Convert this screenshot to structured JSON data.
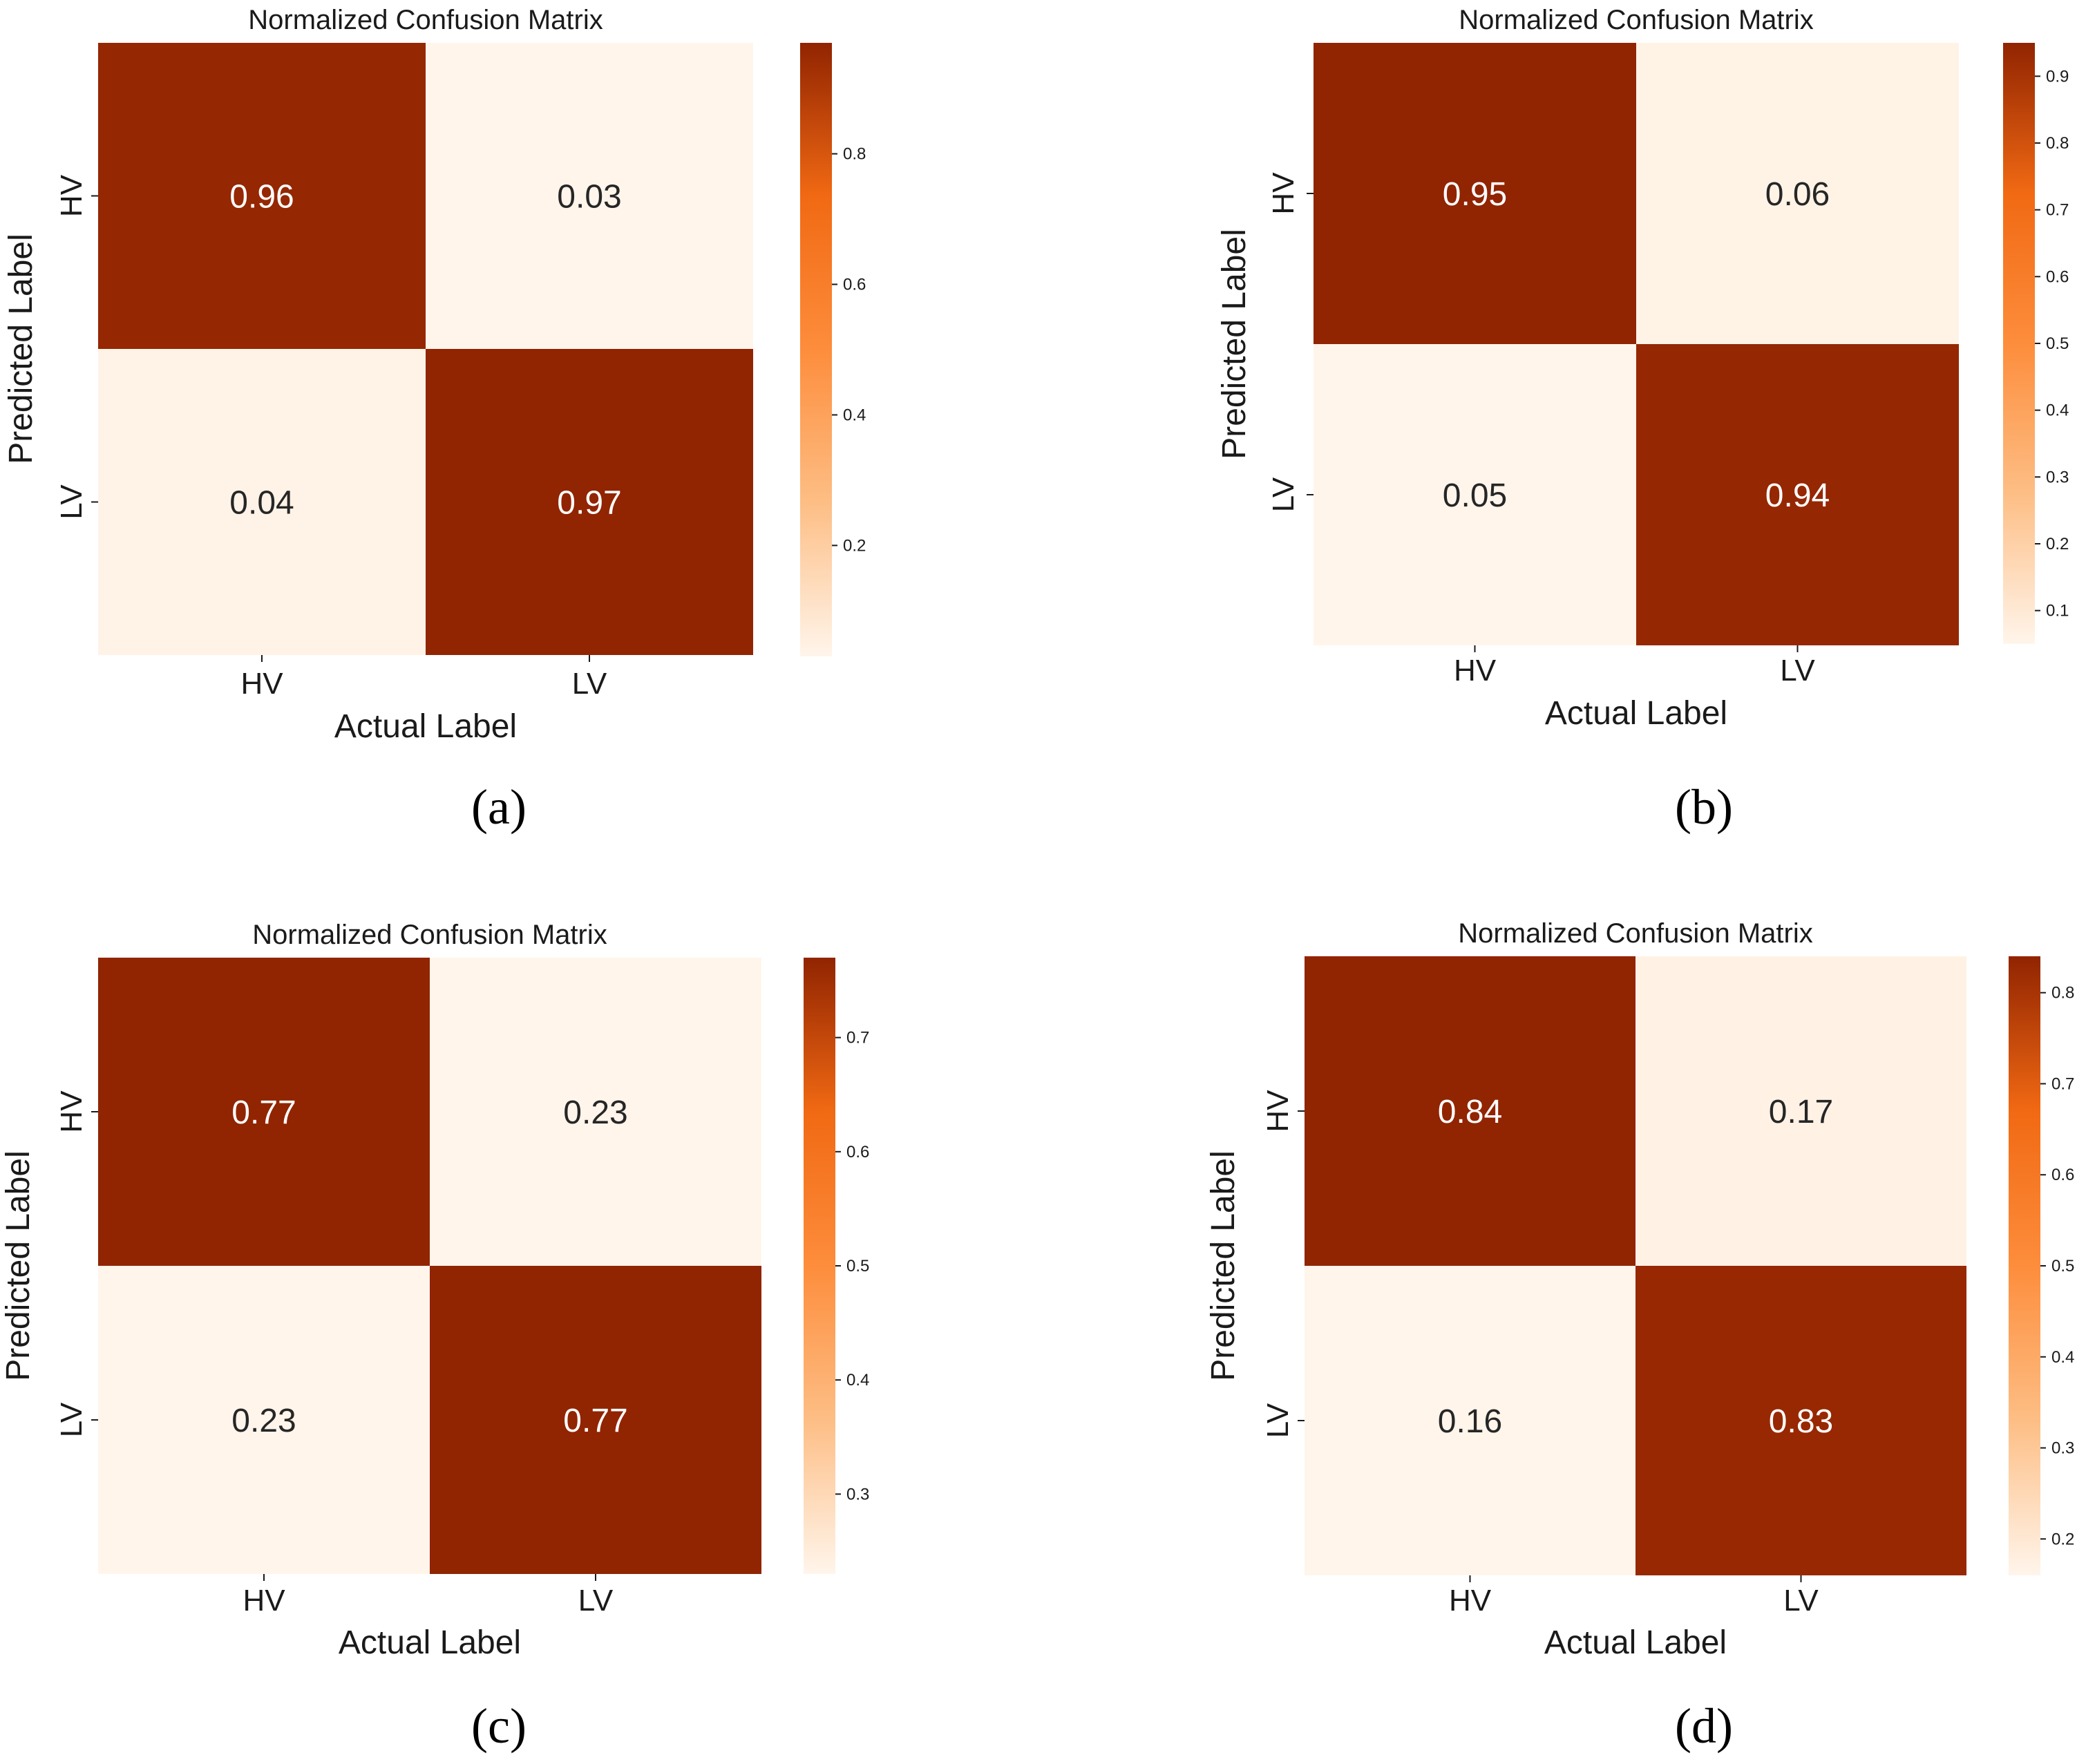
{
  "chart_data": [
    {
      "panel": "(a)",
      "type": "heatmap",
      "title": "Normalized Confusion Matrix",
      "xlabel": "Actual Label",
      "ylabel": "Predicted Label",
      "x_categories": [
        "HV",
        "LV"
      ],
      "y_categories": [
        "HV",
        "LV"
      ],
      "values": [
        [
          0.96,
          0.03
        ],
        [
          0.04,
          0.97
        ]
      ],
      "value_labels": [
        [
          "0.96",
          "0.03"
        ],
        [
          "0.04",
          "0.97"
        ]
      ],
      "colorbar": {
        "range": [
          0.03,
          0.97
        ],
        "ticks": [
          0.2,
          0.4,
          0.6,
          0.8
        ],
        "tick_labels": [
          "0.2",
          "0.4",
          "0.6",
          "0.8"
        ]
      },
      "colormap": "Oranges"
    },
    {
      "panel": "(b)",
      "type": "heatmap",
      "title": "Normalized Confusion Matrix",
      "xlabel": "Actual Label",
      "ylabel": "Predicted Label",
      "x_categories": [
        "HV",
        "LV"
      ],
      "y_categories": [
        "HV",
        "LV"
      ],
      "values": [
        [
          0.95,
          0.06
        ],
        [
          0.05,
          0.94
        ]
      ],
      "value_labels": [
        [
          "0.95",
          "0.06"
        ],
        [
          "0.05",
          "0.94"
        ]
      ],
      "colorbar": {
        "range": [
          0.05,
          0.95
        ],
        "ticks": [
          0.1,
          0.2,
          0.3,
          0.4,
          0.5,
          0.6,
          0.7,
          0.8,
          0.9
        ],
        "tick_labels": [
          "0.1",
          "0.2",
          "0.3",
          "0.4",
          "0.5",
          "0.6",
          "0.7",
          "0.8",
          "0.9"
        ]
      },
      "colormap": "Oranges"
    },
    {
      "panel": "(c)",
      "type": "heatmap",
      "title": "Normalized Confusion Matrix",
      "xlabel": "Actual Label",
      "ylabel": "Predicted Label",
      "x_categories": [
        "HV",
        "LV"
      ],
      "y_categories": [
        "HV",
        "LV"
      ],
      "values": [
        [
          0.77,
          0.23
        ],
        [
          0.23,
          0.77
        ]
      ],
      "value_labels": [
        [
          "0.77",
          "0.23"
        ],
        [
          "0.23",
          "0.77"
        ]
      ],
      "colorbar": {
        "range": [
          0.23,
          0.77
        ],
        "ticks": [
          0.3,
          0.4,
          0.5,
          0.6,
          0.7
        ],
        "tick_labels": [
          "0.3",
          "0.4",
          "0.5",
          "0.6",
          "0.7"
        ]
      },
      "colormap": "Oranges"
    },
    {
      "panel": "(d)",
      "type": "heatmap",
      "title": "Normalized Confusion Matrix",
      "xlabel": "Actual Label",
      "ylabel": "Predicted Label",
      "x_categories": [
        "HV",
        "LV"
      ],
      "y_categories": [
        "HV",
        "LV"
      ],
      "values": [
        [
          0.84,
          0.17
        ],
        [
          0.16,
          0.83
        ]
      ],
      "value_labels": [
        [
          "0.84",
          "0.17"
        ],
        [
          "0.16",
          "0.83"
        ]
      ],
      "colorbar": {
        "range": [
          0.16,
          0.84
        ],
        "ticks": [
          0.2,
          0.3,
          0.4,
          0.5,
          0.6,
          0.7,
          0.8
        ],
        "tick_labels": [
          "0.2",
          "0.3",
          "0.4",
          "0.5",
          "0.6",
          "0.7",
          "0.8"
        ]
      },
      "colormap": "Oranges"
    }
  ],
  "colors": {
    "low": "#fff5eb",
    "mid_light": "#fdbe85",
    "mid": "#fd8d3c",
    "mid_dark": "#f16913",
    "high": "#912401",
    "text_on_dark": "#ffffff",
    "text_on_light": "#262626",
    "axis_text": "#1a1a1a"
  }
}
